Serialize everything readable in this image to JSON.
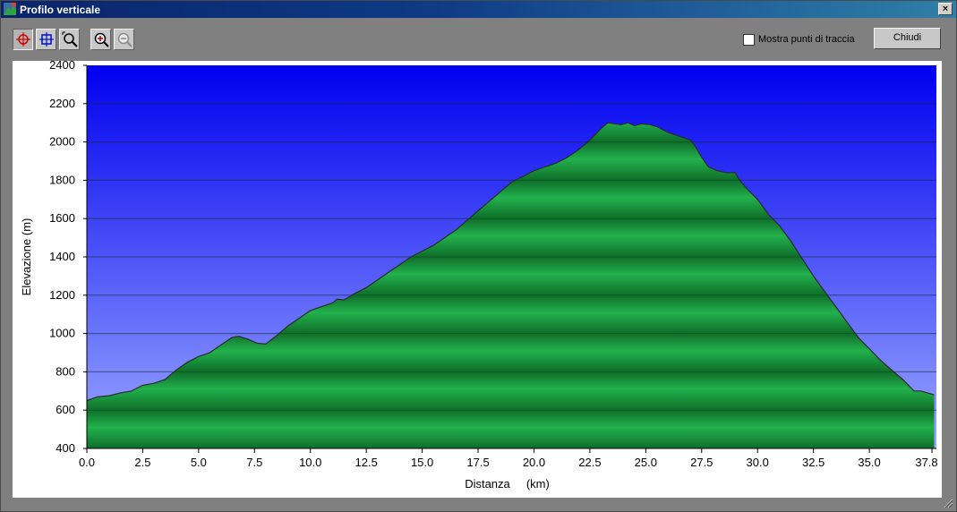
{
  "window": {
    "title": "Profilo verticale",
    "close_glyph": "×"
  },
  "toolbar": {
    "tools": [
      {
        "id": "point-tool",
        "icon": "crosshair-red-icon",
        "active": true
      },
      {
        "id": "box-tool",
        "icon": "crosshair-blue-icon",
        "active": false
      },
      {
        "id": "zoom-area-tool",
        "icon": "zoom-area-icon",
        "active": false
      },
      {
        "id": "zoom-in-tool",
        "icon": "zoom-in-icon",
        "active": false
      },
      {
        "id": "zoom-out-tool",
        "icon": "zoom-out-icon",
        "active": false
      }
    ],
    "show_points_label": "Mostra punti di traccia",
    "show_points_checked": false,
    "close_label": "Chiudi"
  },
  "colors": {
    "sky_top": "#0000f0",
    "sky_bottom": "#9aa8ff",
    "terrain_light": "#22b14c",
    "terrain_dark": "#0f6e2a",
    "outline": "#2a2a2a"
  },
  "chart_data": {
    "type": "area",
    "title": "",
    "xlabel": "Distanza     (km)",
    "ylabel": "Elevazione (m)",
    "xlim": [
      0,
      38.0
    ],
    "ylim": [
      400,
      2400
    ],
    "xticks": [
      "0.0",
      "2.5",
      "5.0",
      "7.5",
      "10.0",
      "12.5",
      "15.0",
      "17.5",
      "20.0",
      "22.5",
      "25.0",
      "27.5",
      "30.0",
      "32.5",
      "35.0",
      "37.8"
    ],
    "xtick_values": [
      0,
      2.5,
      5,
      7.5,
      10,
      12.5,
      15,
      17.5,
      20,
      22.5,
      25,
      27.5,
      30,
      32.5,
      35,
      37.8
    ],
    "yticks": [
      "2400",
      "2200",
      "2000",
      "1800",
      "1600",
      "1400",
      "1200",
      "1000",
      "800",
      "600",
      "400"
    ],
    "ytick_values": [
      2400,
      2200,
      2000,
      1800,
      1600,
      1400,
      1200,
      1000,
      800,
      600,
      400
    ],
    "grid": true,
    "series": [
      {
        "x": [
          0,
          0.5,
          1.0,
          1.5,
          2.0,
          2.5,
          3.0,
          3.5,
          4.0,
          4.5,
          5.0,
          5.5,
          6.0,
          6.5,
          6.8,
          7.2,
          7.6,
          8.0,
          8.5,
          9.0,
          9.5,
          10.0,
          10.5,
          11.0,
          11.2,
          11.5,
          12.0,
          12.5,
          13.0,
          13.5,
          14.0,
          14.5,
          15.0,
          15.5,
          16.0,
          16.5,
          17.0,
          17.5,
          18.0,
          18.5,
          19.0,
          19.5,
          20.0,
          20.5,
          21.0,
          21.5,
          22.0,
          22.5,
          23.0,
          23.3,
          23.6,
          23.9,
          24.2,
          24.5,
          24.8,
          25.2,
          25.5,
          26.0,
          26.5,
          27.0,
          27.2,
          27.5,
          27.8,
          28.2,
          28.6,
          29.0,
          29.2,
          29.5,
          30.0,
          30.5,
          31.0,
          31.5,
          32.0,
          32.5,
          33.0,
          33.5,
          34.0,
          34.5,
          35.0,
          35.5,
          36.0,
          36.5,
          37.0,
          37.3,
          37.6,
          37.9
        ],
        "y": [
          650,
          670,
          675,
          690,
          700,
          730,
          740,
          760,
          810,
          850,
          880,
          900,
          940,
          980,
          985,
          970,
          950,
          945,
          990,
          1040,
          1080,
          1120,
          1140,
          1160,
          1180,
          1175,
          1210,
          1240,
          1280,
          1320,
          1360,
          1400,
          1430,
          1460,
          1500,
          1540,
          1590,
          1640,
          1690,
          1740,
          1790,
          1820,
          1850,
          1870,
          1890,
          1920,
          1960,
          2010,
          2070,
          2100,
          2095,
          2090,
          2100,
          2085,
          2095,
          2090,
          2080,
          2050,
          2030,
          2010,
          1980,
          1920,
          1870,
          1850,
          1840,
          1840,
          1800,
          1760,
          1700,
          1620,
          1560,
          1480,
          1390,
          1300,
          1220,
          1140,
          1060,
          980,
          920,
          860,
          810,
          760,
          700,
          700,
          690,
          680
        ]
      }
    ]
  }
}
